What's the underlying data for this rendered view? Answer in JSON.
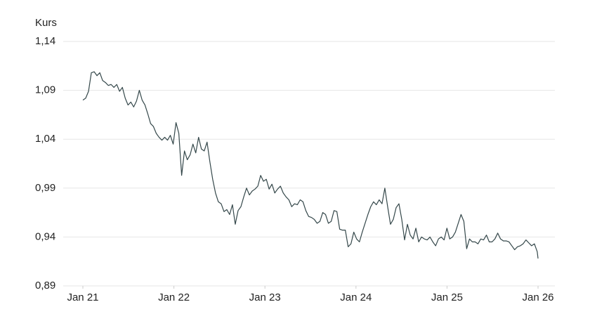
{
  "chart_data": {
    "type": "line",
    "y_label": "Kurs",
    "xlim": [
      2020.784,
      2026.185
    ],
    "xticks": [
      {
        "value": 2021,
        "label": "Jan 21"
      },
      {
        "value": 2022,
        "label": "Jan 22"
      },
      {
        "value": 2023,
        "label": "Jan 23"
      },
      {
        "value": 2024,
        "label": "Jan 24"
      },
      {
        "value": 2025,
        "label": "Jan 25"
      },
      {
        "value": 2026,
        "label": "Jan 26"
      }
    ],
    "ylim": [
      0.89,
      1.14
    ],
    "yticks": [
      {
        "value": 0.89,
        "label": "0,89"
      },
      {
        "value": 0.94,
        "label": "0,94"
      },
      {
        "value": 0.99,
        "label": "0,99"
      },
      {
        "value": 1.04,
        "label": "1,04"
      },
      {
        "value": 1.09,
        "label": "1,09"
      },
      {
        "value": 1.14,
        "label": "1,14"
      }
    ],
    "grid": true,
    "color": "#34474a",
    "x": [
      2021,
      2021.031,
      2021.062,
      2021.093,
      2021.124,
      2021.155,
      2021.186,
      2021.217,
      2021.248,
      2021.279,
      2021.31,
      2021.341,
      2021.372,
      2021.403,
      2021.434,
      2021.465,
      2021.496,
      2021.527,
      2021.558,
      2021.589,
      2021.62,
      2021.651,
      2021.682,
      2021.713,
      2021.744,
      2021.775,
      2021.806,
      2021.837,
      2021.868,
      2021.899,
      2021.93,
      2021.961,
      2021.992,
      2022.023,
      2022.054,
      2022.085,
      2022.116,
      2022.147,
      2022.178,
      2022.209,
      2022.24,
      2022.271,
      2022.302,
      2022.333,
      2022.364,
      2022.395,
      2022.426,
      2022.457,
      2022.488,
      2022.519,
      2022.55,
      2022.581,
      2022.612,
      2022.643,
      2022.674,
      2022.705,
      2022.736,
      2022.767,
      2022.798,
      2022.829,
      2022.86,
      2022.891,
      2022.922,
      2022.953,
      2022.984,
      2023.015,
      2023.046,
      2023.077,
      2023.108,
      2023.139,
      2023.17,
      2023.201,
      2023.232,
      2023.263,
      2023.294,
      2023.325,
      2023.356,
      2023.387,
      2023.418,
      2023.449,
      2023.48,
      2023.511,
      2023.542,
      2023.573,
      2023.604,
      2023.635,
      2023.666,
      2023.697,
      2023.728,
      2023.759,
      2023.79,
      2023.821,
      2023.852,
      2023.883,
      2023.914,
      2023.945,
      2023.976,
      2024.007,
      2024.038,
      2024.069,
      2024.1,
      2024.131,
      2024.162,
      2024.193,
      2024.224,
      2024.255,
      2024.286,
      2024.317,
      2024.348,
      2024.379,
      2024.41,
      2024.441,
      2024.472,
      2024.503,
      2024.534,
      2024.565,
      2024.596,
      2024.627,
      2024.658,
      2024.689,
      2024.72,
      2024.751,
      2024.782,
      2024.813,
      2024.844,
      2024.875,
      2024.906,
      2024.937,
      2024.968,
      2024.999,
      2025.03,
      2025.061,
      2025.092,
      2025.123,
      2025.154,
      2025.185,
      2025.216,
      2025.247,
      2025.278,
      2025.309,
      2025.34,
      2025.371,
      2025.402,
      2025.433,
      2025.464,
      2025.495,
      2025.526,
      2025.557,
      2025.588,
      2025.619,
      2025.65,
      2025.681,
      2025.712,
      2025.743,
      2025.774,
      2025.805,
      2025.836,
      2025.867,
      2025.898,
      2025.929,
      2025.96,
      2025.991,
      2026.0
    ],
    "values": [
      1.08,
      1.082,
      1.089,
      1.108,
      1.109,
      1.105,
      1.108,
      1.1,
      1.098,
      1.095,
      1.096,
      1.093,
      1.096,
      1.089,
      1.093,
      1.082,
      1.075,
      1.078,
      1.073,
      1.079,
      1.09,
      1.08,
      1.075,
      1.066,
      1.056,
      1.053,
      1.046,
      1.042,
      1.039,
      1.042,
      1.039,
      1.044,
      1.035,
      1.057,
      1.046,
      1.003,
      1.028,
      1.019,
      1.024,
      1.035,
      1.026,
      1.042,
      1.03,
      1.028,
      1.037,
      1.017,
      0.999,
      0.985,
      0.976,
      0.974,
      0.966,
      0.968,
      0.963,
      0.973,
      0.953,
      0.967,
      0.971,
      0.981,
      0.99,
      0.983,
      0.987,
      0.989,
      0.992,
      1.003,
      0.997,
      0.999,
      0.989,
      0.994,
      0.985,
      0.989,
      0.992,
      0.985,
      0.981,
      0.978,
      0.971,
      0.974,
      0.973,
      0.978,
      0.976,
      0.967,
      0.961,
      0.96,
      0.958,
      0.954,
      0.956,
      0.965,
      0.963,
      0.954,
      0.956,
      0.967,
      0.966,
      0.948,
      0.947,
      0.947,
      0.93,
      0.933,
      0.945,
      0.938,
      0.935,
      0.945,
      0.954,
      0.963,
      0.971,
      0.976,
      0.973,
      0.978,
      0.974,
      0.99,
      0.971,
      0.953,
      0.958,
      0.97,
      0.974,
      0.958,
      0.937,
      0.953,
      0.942,
      0.938,
      0.949,
      0.935,
      0.94,
      0.938,
      0.937,
      0.94,
      0.935,
      0.931,
      0.938,
      0.94,
      0.937,
      0.949,
      0.938,
      0.94,
      0.945,
      0.954,
      0.963,
      0.956,
      0.928,
      0.938,
      0.935,
      0.935,
      0.933,
      0.938,
      0.937,
      0.942,
      0.935,
      0.935,
      0.938,
      0.944,
      0.938,
      0.936,
      0.936,
      0.935,
      0.931,
      0.927,
      0.93,
      0.931,
      0.933,
      0.937,
      0.934,
      0.931,
      0.933,
      0.925,
      0.918
    ]
  }
}
